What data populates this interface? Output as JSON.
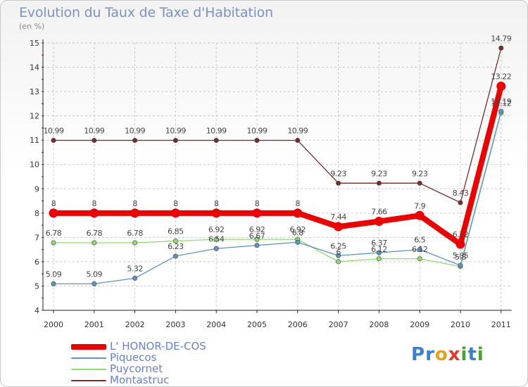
{
  "header": {
    "title": "Evolution du Taux de Taxe d'Habitation",
    "unit": "(en %)"
  },
  "logo": {
    "letters": [
      "P",
      "r",
      "o",
      "x",
      "i",
      "t",
      "i"
    ],
    "colors": [
      "#3a7fd0",
      "#3a7fd0",
      "#e8a019",
      "#e53a2a",
      "#4aa02c",
      "#3a7fd0",
      "#4aa02c"
    ]
  },
  "colors": {
    "grid": "#c8c8c8",
    "axis": "#222222",
    "tick_mark": "#c4002e"
  },
  "chart_data": {
    "type": "line",
    "categories": [
      "2000",
      "2001",
      "2002",
      "2003",
      "2004",
      "2005",
      "2006",
      "2007",
      "2008",
      "2009",
      "2010",
      "2011"
    ],
    "ylim": [
      4,
      15
    ],
    "yticks": [
      4,
      5,
      6,
      7,
      8,
      9,
      10,
      11,
      12,
      13,
      14,
      15
    ],
    "grid": true,
    "legend_position": "bottom-left",
    "series": [
      {
        "name": "L' HONOR-DE-COS",
        "color": "#ee0000",
        "values": [
          8,
          8,
          8,
          8,
          8,
          8,
          8,
          7.44,
          7.66,
          7.9,
          6.72,
          13.22
        ],
        "labels": [
          "8",
          "8",
          "8",
          "8",
          "8",
          "8",
          "8",
          "7.44",
          "7.66",
          "7.9",
          "6.72",
          "13.22"
        ]
      },
      {
        "name": "Piquecos",
        "color": "#5b93c6",
        "values": [
          5.09,
          5.09,
          5.32,
          6.23,
          6.54,
          6.67,
          6.8,
          6.25,
          6.37,
          6.5,
          5.85,
          12.19
        ],
        "labels": [
          "5.09",
          "5.09",
          "5.32",
          "6.23",
          "6.54",
          "6.67",
          "6.8",
          "6.25",
          "6.37",
          "6.5",
          "5.85",
          "12.19"
        ]
      },
      {
        "name": "Puycornet",
        "color": "#8fdc6c",
        "values": [
          6.78,
          6.78,
          6.78,
          6.85,
          6.92,
          6.92,
          6.92,
          6.0,
          6.12,
          6.12,
          5.8,
          12.12
        ],
        "labels": [
          "6.78",
          "6.78",
          "6.78",
          "6.85",
          "6.92",
          "6.92",
          "6.92",
          "6",
          "6.12",
          "6.12",
          "5.8",
          "12.12"
        ]
      },
      {
        "name": "Montastruc",
        "color": "#7a2b2b",
        "values": [
          10.99,
          10.99,
          10.99,
          10.99,
          10.99,
          10.99,
          10.99,
          9.23,
          9.23,
          9.23,
          8.43,
          14.79
        ],
        "labels": [
          "10.99",
          "10.99",
          "10.99",
          "10.99",
          "10.99",
          "10.99",
          "10.99",
          "9.23",
          "9.23",
          "9.23",
          "8.43",
          "14.79"
        ]
      }
    ]
  }
}
